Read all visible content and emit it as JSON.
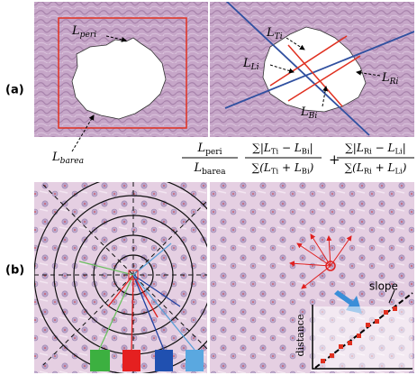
{
  "panels": {
    "a": "(a)",
    "b": "(b)"
  },
  "labels": {
    "peri": [
      {
        "text": "L"
      },
      {
        "sub": "peri"
      }
    ],
    "barea": [
      {
        "text": "L"
      },
      {
        "sub": "barea"
      }
    ],
    "ti": [
      {
        "text": "L"
      },
      {
        "sub": "Ti"
      }
    ],
    "li": [
      {
        "text": "L"
      },
      {
        "sub": "Li"
      }
    ],
    "bi": [
      {
        "text": "L"
      },
      {
        "sub": "Bi"
      }
    ],
    "ri": [
      {
        "text": "L"
      },
      {
        "sub": "Ri"
      }
    ]
  },
  "formula1": {
    "num": [
      {
        "text": "L"
      },
      {
        "sub": "peri"
      }
    ],
    "den": [
      {
        "text": "L"
      },
      {
        "sub": "barea"
      }
    ]
  },
  "formula2": {
    "num1": [
      {
        "text": "∑|L"
      },
      {
        "sub": "Ti"
      },
      {
        "text": " − L"
      },
      {
        "sub": "Bi"
      },
      {
        "text": "|"
      }
    ],
    "den1": [
      {
        "text": "∑(L"
      },
      {
        "sub": "Ti"
      },
      {
        "text": " + L"
      },
      {
        "sub": "Bi"
      },
      {
        "text": ")"
      }
    ],
    "plus": "+",
    "num2": [
      {
        "text": "∑|L"
      },
      {
        "sub": "Ri"
      },
      {
        "text": " − L"
      },
      {
        "sub": "Li"
      },
      {
        "text": "|"
      }
    ],
    "den2": [
      {
        "text": "∑(L"
      },
      {
        "sub": "Ri"
      },
      {
        "text": " + L"
      },
      {
        "sub": "Li"
      },
      {
        "text": ")"
      }
    ]
  },
  "inset": {
    "slope": "slope",
    "distance": "distance"
  }
}
